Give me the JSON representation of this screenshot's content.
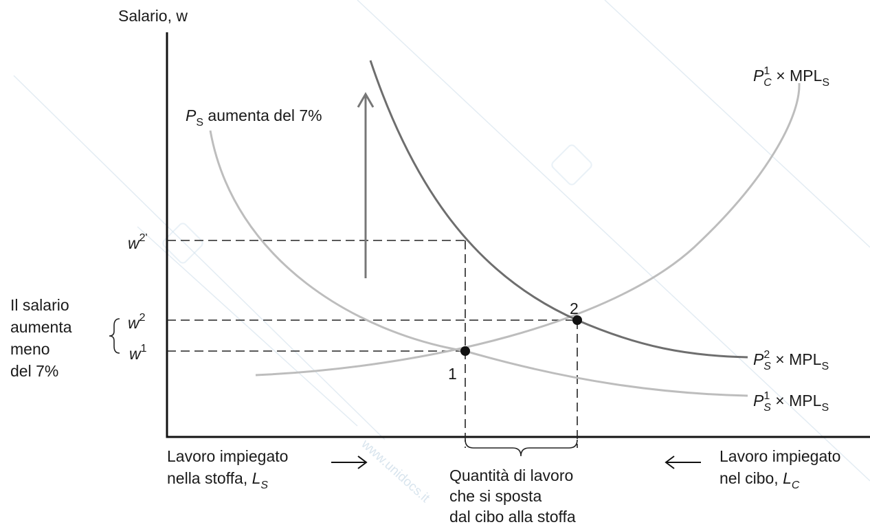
{
  "diagram": {
    "y_axis_label": "Salario, w",
    "shift_note": {
      "prefix": "P",
      "sub": "S",
      "rest": " aumenta del 7%"
    },
    "curve_pc1": {
      "p": "P",
      "sup": "1",
      "sub": "C",
      "rest": " × MPL",
      "sub2": "S"
    },
    "curve_ps2": {
      "p": "P",
      "sup": "2",
      "sub": "S",
      "rest": " × MPL",
      "sub2": "S"
    },
    "curve_ps1": {
      "p": "P",
      "sup": "1",
      "sub": "S",
      "rest": " × MPL",
      "sub2": "S"
    },
    "wage_ticks": {
      "w2p": {
        "base": "w",
        "sup": "2'"
      },
      "w2": {
        "base": "w",
        "sup": "2"
      },
      "w1": {
        "base": "w",
        "sup": "1"
      }
    },
    "points": {
      "p1": "1",
      "p2": "2"
    },
    "left_note": [
      "Il salario",
      "aumenta",
      "meno",
      "del 7%"
    ],
    "x_left": {
      "line1": "Lavoro impiegato",
      "line2_text": "nella stoffa, ",
      "line2_var": "L",
      "line2_sub": "S"
    },
    "x_right": {
      "line1": "Lavoro impiegato",
      "line2_text": "nel cibo, ",
      "line2_var": "L",
      "line2_sub": "C"
    },
    "quantity_note": [
      "Quantità di lavoro",
      "che si sposta",
      "dal cibo alla stoffa"
    ],
    "watermark": "www.unidocs.it",
    "colors": {
      "ps1_curve": "#bdbdbd",
      "ps2_curve": "#6e6e6e",
      "arrow": "#777777",
      "watermark": "#e3ecf3"
    }
  }
}
